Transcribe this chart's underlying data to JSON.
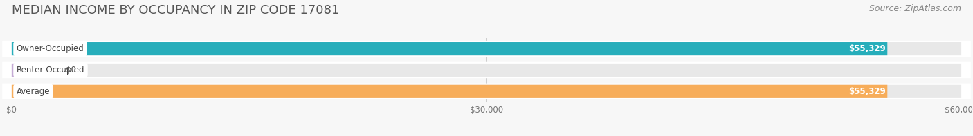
{
  "title": "MEDIAN INCOME BY OCCUPANCY IN ZIP CODE 17081",
  "source": "Source: ZipAtlas.com",
  "categories": [
    "Owner-Occupied",
    "Renter-Occupied",
    "Average"
  ],
  "values": [
    55329,
    0,
    55329
  ],
  "bar_colors": [
    "#27aebb",
    "#c4aad4",
    "#f7ad5a"
  ],
  "value_labels": [
    "$55,329",
    "$0",
    "$55,329"
  ],
  "xlim": [
    0,
    60000
  ],
  "xticks": [
    0,
    30000,
    60000
  ],
  "xtick_labels": [
    "$0",
    "$30,000",
    "$60,000"
  ],
  "background_color": "#f7f7f7",
  "bar_bg_color": "#e8e8e8",
  "title_fontsize": 13,
  "source_fontsize": 9,
  "bar_height": 0.62,
  "renter_bar_width": 2800
}
